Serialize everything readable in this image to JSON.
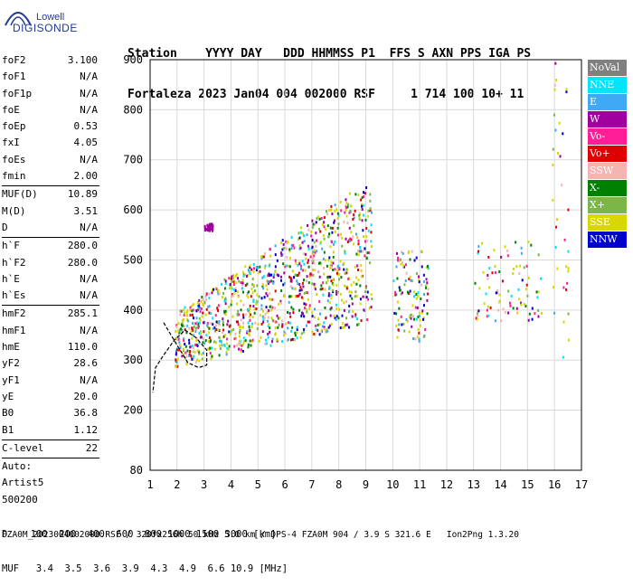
{
  "logo": {
    "top_text": "Lowell",
    "brand": "DIGISONDE"
  },
  "header": {
    "line1": "Station    YYYY DAY   DDD HHMMSS P1  FFS S AXN PPS IGA PS",
    "line2": "Fortaleza 2023 Jan04 004 002000 RSF     1 714 100 10+ 11"
  },
  "params": [
    {
      "label": "foF2",
      "value": "3.100"
    },
    {
      "label": "foF1",
      "value": "N/A"
    },
    {
      "label": "foF1p",
      "value": "N/A"
    },
    {
      "label": "foE",
      "value": "N/A"
    },
    {
      "label": "foEp",
      "value": "0.53"
    },
    {
      "label": "fxI",
      "value": "4.05"
    },
    {
      "label": "foEs",
      "value": "N/A"
    },
    {
      "label": "fmin",
      "value": "2.00",
      "sep": true
    },
    {
      "label": "MUF(D)",
      "value": "10.89"
    },
    {
      "label": "M(D)",
      "value": "3.51"
    },
    {
      "label": "D",
      "value": "N/A",
      "sep": true
    },
    {
      "label": "h`F",
      "value": "280.0"
    },
    {
      "label": "h`F2",
      "value": "280.0"
    },
    {
      "label": "h`E",
      "value": "N/A"
    },
    {
      "label": "h`Es",
      "value": "N/A",
      "sep": true
    },
    {
      "label": "hmF2",
      "value": "285.1"
    },
    {
      "label": "hmF1",
      "value": "N/A"
    },
    {
      "label": "hmE",
      "value": "110.0"
    },
    {
      "label": "yF2",
      "value": "28.6"
    },
    {
      "label": "yF1",
      "value": "N/A"
    },
    {
      "label": "yE",
      "value": "20.0"
    },
    {
      "label": "B0",
      "value": "36.8"
    },
    {
      "label": "B1",
      "value": "1.12",
      "sep": true
    },
    {
      "label": "C-level",
      "value": "22",
      "sep": true
    },
    {
      "label": "Auto:",
      "value": ""
    },
    {
      "label": "Artist5",
      "value": ""
    },
    {
      "label": "500200",
      "value": ""
    }
  ],
  "legend": [
    {
      "label": "NoVal",
      "color": "#808080"
    },
    {
      "label": "NNE",
      "color": "#00e5ff"
    },
    {
      "label": "E",
      "color": "#3fa9f5"
    },
    {
      "label": "W",
      "color": "#a000a0"
    },
    {
      "label": "Vo-",
      "color": "#ff1e96"
    },
    {
      "label": "Vo+",
      "color": "#e00000"
    },
    {
      "label": "SSW",
      "color": "#f4b4b4"
    },
    {
      "label": "X-",
      "color": "#008000"
    },
    {
      "label": "X+",
      "color": "#7ab648"
    },
    {
      "label": "SSE",
      "color": "#d8d800"
    },
    {
      "label": "NNW",
      "color": "#0000cc"
    }
  ],
  "chart_data": {
    "type": "scatter",
    "x_ticks": [
      "1",
      "2",
      "3",
      "4",
      "5",
      "6",
      "7",
      "8",
      "9",
      "10",
      "11",
      "12",
      "13",
      "14",
      "15",
      "16",
      "17"
    ],
    "y_ticks": [
      "80",
      "200",
      "300",
      "400",
      "500",
      "600",
      "700",
      "800",
      "900"
    ],
    "xlim": [
      1,
      17
    ],
    "ylim": [
      80,
      900
    ],
    "grid": true,
    "ylabel": "",
    "xlabel": "",
    "trace": [
      [
        1.5,
        375
      ],
      [
        2.0,
        330
      ],
      [
        2.4,
        295
      ],
      [
        2.8,
        285
      ],
      [
        3.1,
        290
      ],
      [
        3.1,
        320
      ],
      [
        2.7,
        345
      ],
      [
        2.3,
        360
      ],
      [
        1.9,
        340
      ],
      [
        1.5,
        310
      ],
      [
        1.2,
        285
      ],
      [
        1.1,
        235
      ]
    ]
  },
  "footer": {
    "d_row": "D    100  200  400  600  800 1000 1500 3000 [km]",
    "muf_row": "MUF   3.4  3.5  3.6  3.9  4.3  4.9  6.6 10.9 [MHz]",
    "file_line": "FZA0M_2023004002000.RSF / 320fx256h 50 kHz 5.0 km / DPS-4 FZA0M 904 / 3.9 S 321.6 E   Ion2Png 1.3.20"
  }
}
